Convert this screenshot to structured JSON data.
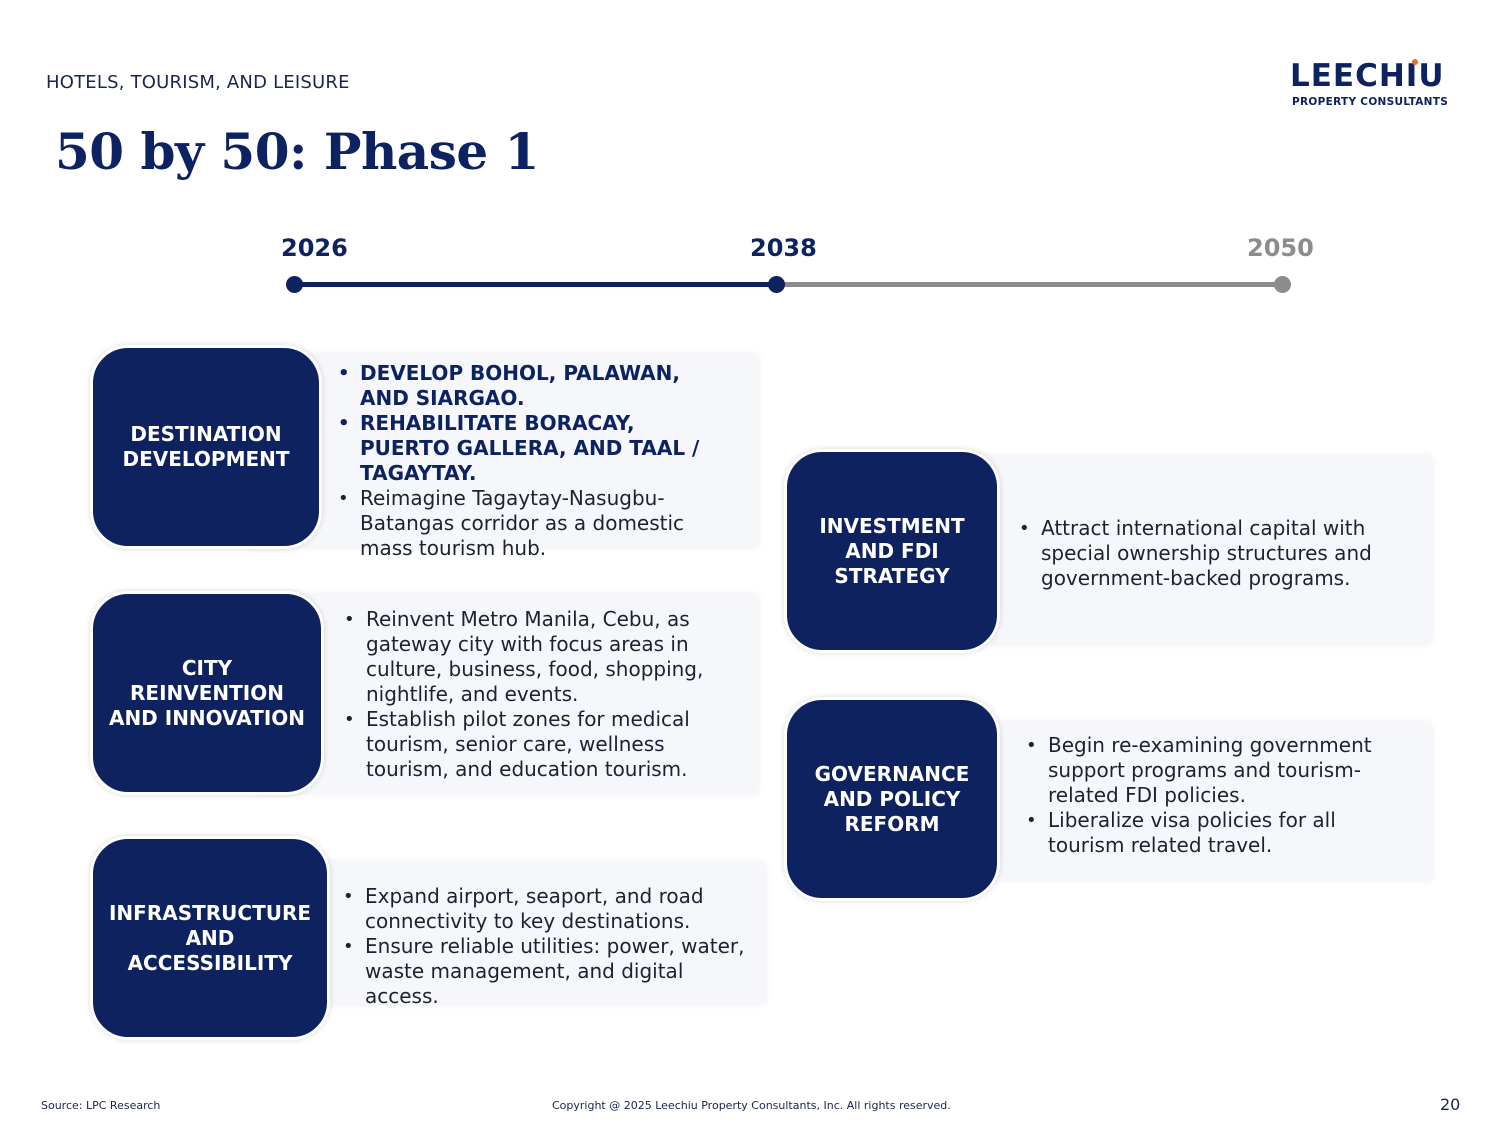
{
  "header": {
    "section_label": "HOTELS, TOURISM, AND LEISURE",
    "title": "50 by 50: Phase 1",
    "logo": {
      "name": "LEECHIU",
      "tagline": "PROPERTY CONSULTANTS"
    }
  },
  "timeline": {
    "years": [
      "2026",
      "2038",
      "2050"
    ],
    "active_color": "#0e2260",
    "inactive_color": "#8c8c8c"
  },
  "pillars": [
    {
      "label": "DESTINATION DEVELOPMENT",
      "bullets": [
        "DEVELOP BOHOL, PALAWAN, AND SIARGAO.",
        "REHABILITATE BORACAY, PUERTO GALLERA, AND TAAL / TAGAYTAY.",
        "Reimagine Tagaytay-Nasugbu-Batangas corridor as a domestic mass tourism hub."
      ]
    },
    {
      "label": "CITY REINVENTION AND INNOVATION",
      "bullets": [
        "Reinvent Metro Manila, Cebu, as gateway city with focus areas in culture, business, food, shopping, nightlife, and events.",
        "Establish pilot zones for medical tourism, senior care, wellness tourism, and education tourism."
      ]
    },
    {
      "label": "INFRASTRUCTURE AND ACCESSIBILITY",
      "bullets": [
        "Expand airport, seaport, and road connectivity to key destinations.",
        "Ensure reliable utilities: power, water, waste management, and digital access."
      ]
    },
    {
      "label": "INVESTMENT AND FDI STRATEGY",
      "bullets": [
        "Attract international capital with special ownership structures and government-backed programs."
      ]
    },
    {
      "label": "GOVERNANCE AND POLICY REFORM",
      "bullets": [
        "Begin re-examining government support programs and tourism-related FDI policies.",
        "Liberalize visa policies for all tourism related travel."
      ]
    }
  ],
  "footer": {
    "source": "Source: LPC Research",
    "copyright": "Copyright @ 2025 Leechiu Property Consultants, Inc. All rights reserved.",
    "page_number": "20"
  },
  "colors": {
    "brand_navy": "#0e2260",
    "accent_orange": "#f26a21"
  }
}
